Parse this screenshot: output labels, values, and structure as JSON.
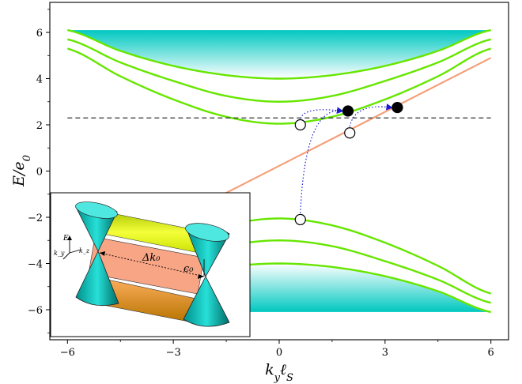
{
  "chart_data": {
    "type": "line",
    "title": "",
    "xlabel": "k_y ℓ_S",
    "ylabel": "E/e_0",
    "xlim": [
      -6.5,
      6.5
    ],
    "ylim": [
      -7.3,
      7.3
    ],
    "x_ticks": [
      -6,
      -3,
      0,
      3,
      6
    ],
    "y_ticks": [
      -6,
      -4,
      -2,
      0,
      2,
      4,
      6
    ],
    "x_tick_labels": [
      "−6",
      "−3",
      "0",
      "3",
      "6"
    ],
    "y_tick_labels": [
      "−6",
      "−4",
      "−2",
      "0",
      "2",
      "4",
      "6"
    ],
    "grid": false,
    "fermi_level": 2.3,
    "colors": {
      "landau": "#66e600",
      "chiral": "#f4a07a",
      "bulk_fill": "#00c8c0",
      "arrow": "#1a1ad0",
      "fermi": "#333333"
    },
    "landau_levels": {
      "description_x": [
        -6,
        -4.5,
        -3,
        -1.5,
        0,
        1.5,
        3,
        4.5,
        6
      ],
      "upper": [
        {
          "values": [
            5.3,
            4.1,
            3.1,
            2.35,
            2.05,
            2.35,
            3.1,
            4.1,
            5.3
          ]
        },
        {
          "values": [
            5.7,
            4.7,
            3.9,
            3.25,
            3.0,
            3.25,
            3.9,
            4.7,
            5.7
          ]
        },
        {
          "values": [
            6.1,
            5.2,
            4.55,
            4.15,
            4.0,
            4.15,
            4.55,
            5.2,
            6.1
          ]
        }
      ],
      "lower": [
        {
          "values": [
            -5.3,
            -4.1,
            -3.1,
            -2.35,
            -2.05,
            -2.35,
            -3.1,
            -4.1,
            -5.3
          ]
        },
        {
          "values": [
            -5.7,
            -4.7,
            -3.9,
            -3.25,
            -3.0,
            -3.25,
            -3.9,
            -4.7,
            -5.7
          ]
        },
        {
          "values": [
            -6.1,
            -5.2,
            -4.55,
            -4.15,
            -4.0,
            -4.15,
            -4.55,
            -5.2,
            -6.1
          ]
        }
      ]
    },
    "chiral_line": {
      "x": [
        -3.5,
        6
      ],
      "y": [
        -2.5,
        4.9
      ]
    },
    "points": {
      "open": [
        {
          "x": 0.6,
          "y": 2.0
        },
        {
          "x": 2.0,
          "y": 1.65
        },
        {
          "x": 0.6,
          "y": -2.1
        }
      ],
      "filled": [
        {
          "x": 1.95,
          "y": 2.6
        },
        {
          "x": 3.35,
          "y": 2.75
        }
      ]
    },
    "transitions": [
      {
        "from": [
          0.6,
          2.0
        ],
        "to": [
          1.95,
          2.6
        ]
      },
      {
        "from": [
          0.6,
          -2.1
        ],
        "to": [
          1.95,
          2.6
        ]
      },
      {
        "from": [
          2.0,
          1.65
        ],
        "to": [
          3.35,
          2.75
        ]
      }
    ]
  },
  "inset": {
    "axis_E": "E",
    "axis_ky": "k_y",
    "axis_kz": "k_z",
    "delta_k": "Δk₀",
    "epsilon": "ϵ₀"
  }
}
